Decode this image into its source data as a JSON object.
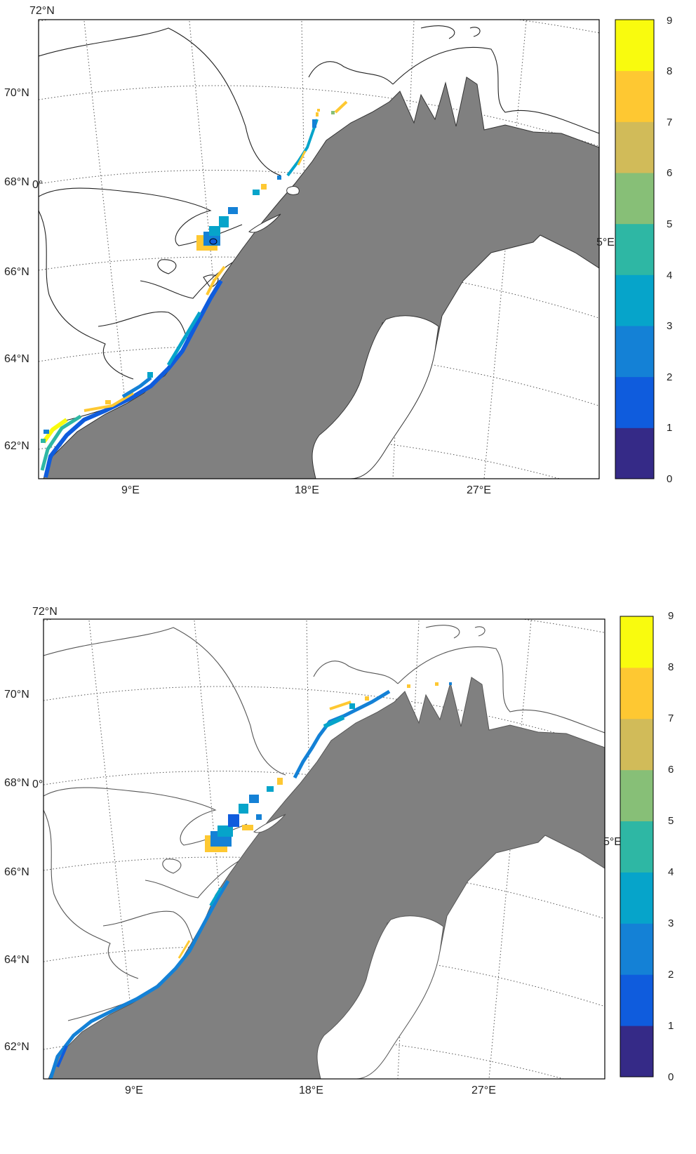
{
  "maps": [
    {
      "id": "top",
      "lat_labels": [
        "72°N",
        "70°N",
        "68°N",
        "66°N",
        "64°N",
        "62°N"
      ],
      "lon_labels": [
        "9°E",
        "18°E",
        "27°E"
      ],
      "edge_labels": [
        "0°",
        "5°E"
      ],
      "colorbar": {
        "ticks": [
          "0",
          "1",
          "2",
          "3",
          "4",
          "5",
          "6",
          "7",
          "8",
          "9"
        ],
        "colors": [
          "#352a87",
          "#0f5cdd",
          "#1481d6",
          "#06a4ca",
          "#2eb7a4",
          "#87bf77",
          "#d1bb59",
          "#fec832",
          "#f9fb0e"
        ]
      },
      "land_color": "#808080"
    },
    {
      "id": "bottom",
      "lat_labels": [
        "72°N",
        "70°N",
        "68°N",
        "66°N",
        "64°N",
        "62°N"
      ],
      "lon_labels": [
        "9°E",
        "18°E",
        "27°E"
      ],
      "edge_labels": [
        "0°",
        "5°E"
      ],
      "colorbar": {
        "ticks": [
          "0",
          "1",
          "2",
          "3",
          "4",
          "5",
          "6",
          "7",
          "8",
          "9"
        ],
        "colors": [
          "#352a87",
          "#0f5cdd",
          "#1481d6",
          "#06a4ca",
          "#2eb7a4",
          "#87bf77",
          "#d1bb59",
          "#fec832",
          "#f9fb0e"
        ]
      },
      "land_color": "#808080"
    }
  ]
}
